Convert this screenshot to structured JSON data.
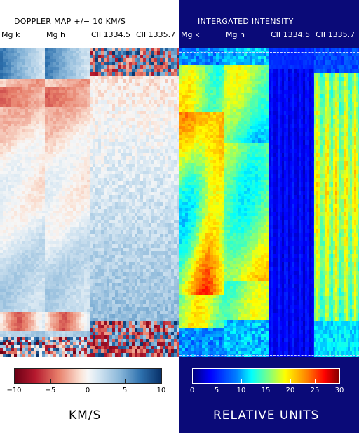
{
  "doppler": {
    "title": "DOPPLER MAP +/− 10 KM/S",
    "columns": [
      "Mg k",
      "Mg h",
      "CII 1334.5",
      "CII 1335.7"
    ],
    "colorbar": {
      "ticks": [
        "−10",
        "−5",
        "0",
        "5",
        "10"
      ],
      "unit": "KM/S"
    }
  },
  "intensity": {
    "title": "INTERGATED INTENSITY",
    "columns": [
      "Mg k",
      "Mg h",
      "CII 1334.5",
      "CII 1335.7"
    ],
    "colorbar": {
      "ticks": [
        "0",
        "5",
        "10",
        "15",
        "20",
        "25",
        "30"
      ],
      "unit": "RELATIVE UNITS"
    }
  }
}
